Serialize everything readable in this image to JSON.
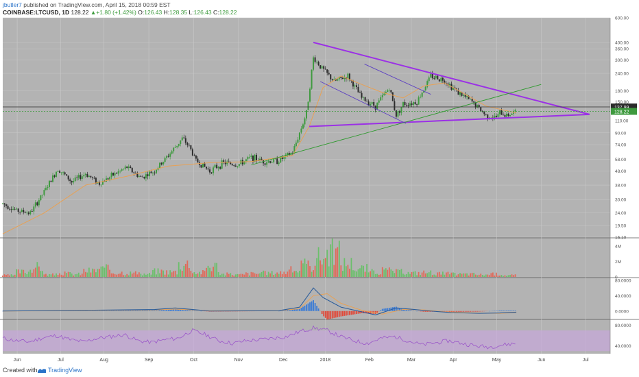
{
  "header": {
    "author": "jbutler7",
    "published": " published on TradingView.com, April 15, 2018 00:59 EST",
    "symbol": "COINBASE:LTCUSD, 1D",
    "last": "128.22",
    "change": "+1.80 (+1.42%)",
    "o_label": "O:",
    "o_value": "126.43",
    "h_label": "H:",
    "h_value": "128.35",
    "l_label": "L:",
    "l_value": "126.43",
    "c_label": "C:",
    "c_value": "128.22"
  },
  "footer": {
    "created_with": "Created with",
    "brand": "TradingView"
  },
  "colors": {
    "background": "#b3b3b3",
    "up_candle": "#3f9a3f",
    "down_candle": "#2c2c2c",
    "ma": "#e8a154",
    "triangle": "#9b30e6",
    "channel": "#5b3fc2",
    "trendline": "#2f9a2f",
    "volume_up": "#6bbf6b",
    "volume_down": "#e06a5a",
    "macd": "#2a5c9a",
    "signal": "#e8a154",
    "rsi": "#9b57c9",
    "rsi_band": "#c8a8dc"
  },
  "chart_data": [
    {
      "type": "candlestick",
      "panel": "price",
      "scale": "log",
      "x_labels": [
        "Jun",
        "Jul",
        "Aug",
        "Sep",
        "Oct",
        "Nov",
        "Dec",
        "2018",
        "Feb",
        "Mar",
        "Apr",
        "May",
        "Jun",
        "Jul"
      ],
      "y_ticks": [
        "600.00",
        "400.00",
        "360.00",
        "300.00",
        "240.00",
        "180.00",
        "150.00",
        "110.00",
        "90.00",
        "74.00",
        "58.00",
        "48.00",
        "38.00",
        "30.00",
        "24.00",
        "19.50",
        "16.10"
      ],
      "ylim": [
        16.1,
        600
      ],
      "price_markers": [
        "137.99",
        "128.22"
      ],
      "series": [
        {
          "name": "LTCUSD",
          "close_path": [
            [
              0,
              28
            ],
            [
              10,
              25
            ],
            [
              20,
              24
            ],
            [
              30,
              34
            ],
            [
              40,
              50
            ],
            [
              50,
              40
            ],
            [
              60,
              46
            ],
            [
              70,
              39
            ],
            [
              80,
              45
            ],
            [
              90,
              51
            ],
            [
              100,
              43
            ],
            [
              110,
              48
            ],
            [
              120,
              62
            ],
            [
              130,
              82
            ],
            [
              135,
              72
            ],
            [
              140,
              57
            ],
            [
              150,
              48
            ],
            [
              160,
              55
            ],
            [
              170,
              53
            ],
            [
              180,
              60
            ],
            [
              190,
              56
            ],
            [
              200,
              57
            ],
            [
              210,
              65
            ],
            [
              215,
              90
            ],
            [
              220,
              125
            ],
            [
              225,
              310
            ],
            [
              230,
              270
            ],
            [
              240,
              210
            ],
            [
              250,
              230
            ],
            [
              260,
              160
            ],
            [
              270,
              140
            ],
            [
              280,
              190
            ],
            [
              285,
              120
            ],
            [
              290,
              145
            ],
            [
              300,
              150
            ],
            [
              310,
              230
            ],
            [
              320,
              215
            ],
            [
              330,
              175
            ],
            [
              340,
              150
            ],
            [
              350,
              120
            ],
            [
              357,
              115
            ],
            [
              360,
              125
            ],
            [
              365,
              120
            ],
            [
              372,
              128
            ]
          ]
        },
        {
          "name": "MA",
          "path": [
            [
              0,
              17
            ],
            [
              30,
              24
            ],
            [
              60,
              38
            ],
            [
              90,
              44
            ],
            [
              120,
              52
            ],
            [
              150,
              55
            ],
            [
              180,
              56
            ],
            [
              210,
              62
            ],
            [
              222,
              100
            ],
            [
              232,
              190
            ],
            [
              245,
              230
            ],
            [
              260,
              200
            ],
            [
              275,
              175
            ],
            [
              290,
              160
            ],
            [
              305,
              195
            ],
            [
              320,
              205
            ],
            [
              335,
              170
            ],
            [
              350,
              140
            ],
            [
              372,
              125
            ]
          ]
        }
      ],
      "lines": [
        {
          "name": "triangle-upper",
          "from": [
            225,
            400
          ],
          "to": [
            425,
            122
          ]
        },
        {
          "name": "triangle-lower",
          "from": [
            222,
            100
          ],
          "to": [
            425,
            122
          ]
        },
        {
          "name": "trendline",
          "from": [
            180,
            53
          ],
          "to": [
            390,
            200
          ]
        },
        {
          "name": "channel-upper",
          "from": [
            262,
            280
          ],
          "to": [
            310,
            170
          ]
        },
        {
          "name": "channel-lower",
          "from": [
            230,
            210
          ],
          "to": [
            292,
            105
          ]
        }
      ]
    },
    {
      "type": "bar",
      "panel": "volume",
      "y_ticks": [
        "4M",
        "2M",
        "0"
      ],
      "ylim": [
        0,
        5
      ],
      "values_M": [
        0.3,
        0.9,
        1.7,
        0.4,
        0.6,
        0.5,
        1.1,
        1.4,
        0.8,
        0.7,
        0.5,
        1.0,
        0.9,
        2.3,
        0.8,
        1.9,
        0.5,
        0.4,
        0.6,
        0.7,
        0.8,
        1.2,
        2.0,
        3.5,
        4.3,
        2.4,
        1.5,
        0.9,
        1.1,
        0.9,
        0.7,
        0.8,
        0.6,
        0.5,
        0.5,
        0.4,
        0.5,
        0.3
      ]
    },
    {
      "type": "line",
      "panel": "macd",
      "y_ticks": [
        "80.0000",
        "40.0000",
        "0.0000"
      ],
      "ylim": [
        -20,
        85
      ],
      "series": [
        {
          "name": "MACD",
          "path": [
            [
              0,
              0
            ],
            [
              60,
              2
            ],
            [
              110,
              4
            ],
            [
              125,
              8
            ],
            [
              150,
              0
            ],
            [
              200,
              1
            ],
            [
              215,
              10
            ],
            [
              225,
              60
            ],
            [
              232,
              35
            ],
            [
              245,
              10
            ],
            [
              260,
              -2
            ],
            [
              270,
              -10
            ],
            [
              285,
              8
            ],
            [
              295,
              5
            ],
            [
              310,
              0
            ],
            [
              325,
              -4
            ],
            [
              345,
              -6
            ],
            [
              360,
              -5
            ],
            [
              372,
              -3
            ]
          ]
        },
        {
          "name": "Signal",
          "path": [
            [
              0,
              0
            ],
            [
              60,
              1
            ],
            [
              110,
              3
            ],
            [
              125,
              5
            ],
            [
              150,
              1
            ],
            [
              200,
              1
            ],
            [
              215,
              6
            ],
            [
              225,
              40
            ],
            [
              235,
              45
            ],
            [
              245,
              20
            ],
            [
              260,
              2
            ],
            [
              275,
              -8
            ],
            [
              290,
              4
            ],
            [
              305,
              3
            ],
            [
              320,
              -2
            ],
            [
              345,
              -5
            ],
            [
              360,
              -6
            ],
            [
              372,
              -4
            ]
          ]
        }
      ]
    },
    {
      "type": "line",
      "panel": "rsi",
      "y_ticks": [
        "80.0000",
        "40.0000"
      ],
      "ylim": [
        25,
        90
      ],
      "band": [
        30,
        70
      ],
      "series": [
        {
          "name": "RSI",
          "values": [
            55,
            50,
            48,
            56,
            60,
            52,
            48,
            55,
            58,
            62,
            50,
            47,
            52,
            55,
            70,
            62,
            50,
            45,
            50,
            52,
            55,
            58,
            68,
            75,
            70,
            58,
            50,
            45,
            55,
            58,
            50,
            42,
            46,
            50,
            45,
            40,
            38,
            42,
            45
          ]
        }
      ]
    }
  ]
}
